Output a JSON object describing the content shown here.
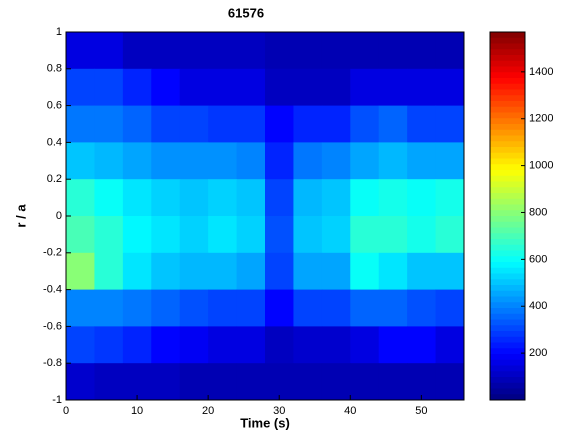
{
  "chart_data": {
    "type": "contour",
    "title": "61576",
    "x_label": "Time (s)",
    "y_label": "r / a",
    "x": [
      2,
      6,
      10,
      14,
      18,
      22,
      26,
      30,
      34,
      38,
      42,
      46,
      50,
      54
    ],
    "y": [
      0.9,
      0.7,
      0.5,
      0.3,
      0.1,
      -0.1,
      -0.3,
      -0.5,
      -0.7,
      -0.9
    ],
    "z": [
      [
        150,
        150,
        100,
        100,
        100,
        100,
        100,
        80,
        80,
        80,
        80,
        80,
        80,
        80
      ],
      [
        300,
        300,
        250,
        200,
        150,
        150,
        150,
        100,
        100,
        100,
        150,
        150,
        150,
        150
      ],
      [
        380,
        380,
        350,
        300,
        300,
        280,
        280,
        200,
        250,
        250,
        320,
        350,
        300,
        300
      ],
      [
        500,
        480,
        450,
        420,
        420,
        420,
        400,
        250,
        380,
        400,
        450,
        480,
        450,
        450
      ],
      [
        650,
        600,
        550,
        520,
        500,
        520,
        500,
        300,
        480,
        500,
        600,
        620,
        600,
        620
      ],
      [
        700,
        650,
        580,
        550,
        520,
        550,
        520,
        320,
        500,
        520,
        650,
        650,
        620,
        650
      ],
      [
        800,
        650,
        550,
        500,
        480,
        480,
        450,
        300,
        450,
        450,
        600,
        550,
        500,
        500
      ],
      [
        400,
        400,
        380,
        350,
        320,
        300,
        300,
        200,
        300,
        300,
        350,
        350,
        320,
        300
      ],
      [
        300,
        280,
        250,
        200,
        180,
        150,
        150,
        100,
        120,
        120,
        150,
        200,
        200,
        150
      ],
      [
        120,
        100,
        100,
        100,
        80,
        80,
        80,
        80,
        80,
        80,
        80,
        80,
        80,
        80
      ]
    ],
    "xlim": [
      0,
      56
    ],
    "ylim": [
      -1,
      1
    ],
    "zlim": [
      0,
      1570
    ],
    "xticks": [
      0,
      10,
      20,
      30,
      40,
      50
    ],
    "yticks": [
      -1,
      -0.8,
      -0.6,
      -0.4,
      -0.2,
      0,
      0.2,
      0.4,
      0.6,
      0.8,
      1
    ],
    "zticks": [
      200,
      400,
      600,
      800,
      1000,
      1200,
      1400
    ],
    "colormap": "jet"
  }
}
